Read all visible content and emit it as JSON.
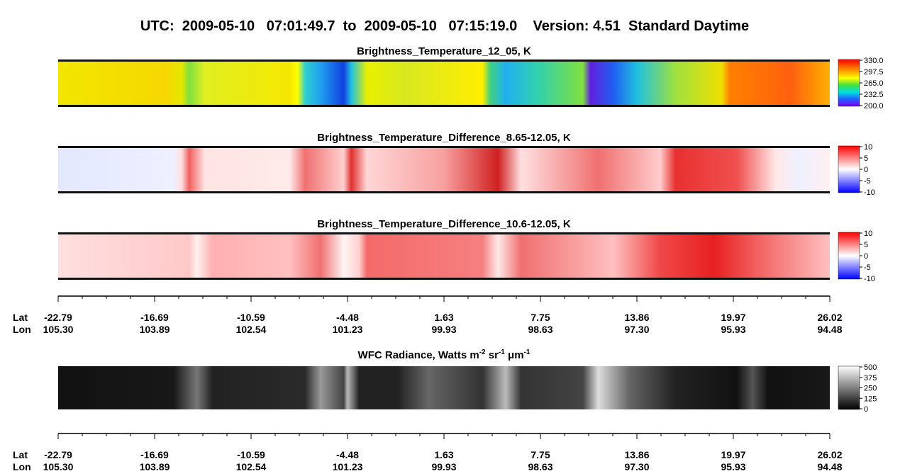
{
  "title": "UTC:  2009-05-10   07:01:49.7  to  2009-05-10   07:15:19.0    Version: 4.51  Standard Daytime",
  "panels": [
    {
      "title": "Brightness_Temperature_12_05, K",
      "colorbar": [
        "330.0",
        "297.5",
        "265.0",
        "232.5",
        "200.0"
      ]
    },
    {
      "title": "Brightness_Temperature_Difference_8.65-12.05, K",
      "colorbar": [
        "10",
        "5",
        "0",
        "-5",
        "-10"
      ]
    },
    {
      "title": "Brightness_Temperature_Difference_10.6-12.05, K",
      "colorbar": [
        "10",
        "5",
        "0",
        "-5",
        "-10"
      ]
    },
    {
      "title_parts": [
        "WFC Radiance, Watts m",
        "-2",
        " sr",
        "-1",
        " μm",
        "-1"
      ],
      "colorbar": [
        "500",
        "375",
        "250",
        "125",
        "0"
      ]
    }
  ],
  "axes": [
    {
      "lat_label": "Lat",
      "lon_label": "Lon",
      "lat": [
        "-22.79",
        "-16.69",
        "-10.59",
        "-4.48",
        "1.63",
        "7.75",
        "13.86",
        "19.97",
        "26.02"
      ],
      "lon": [
        "105.30",
        "103.89",
        "102.54",
        "101.23",
        "99.93",
        "98.63",
        "97.30",
        "95.93",
        "94.48"
      ]
    },
    {
      "lat_label": "Lat",
      "lon_label": "Lon",
      "lat": [
        "-22.79",
        "-16.69",
        "-10.59",
        "-4.48",
        "1.63",
        "7.75",
        "13.86",
        "19.97",
        "26.02"
      ],
      "lon": [
        "105.30",
        "103.89",
        "102.54",
        "101.23",
        "99.93",
        "98.63",
        "97.30",
        "95.93",
        "94.48"
      ]
    }
  ]
}
